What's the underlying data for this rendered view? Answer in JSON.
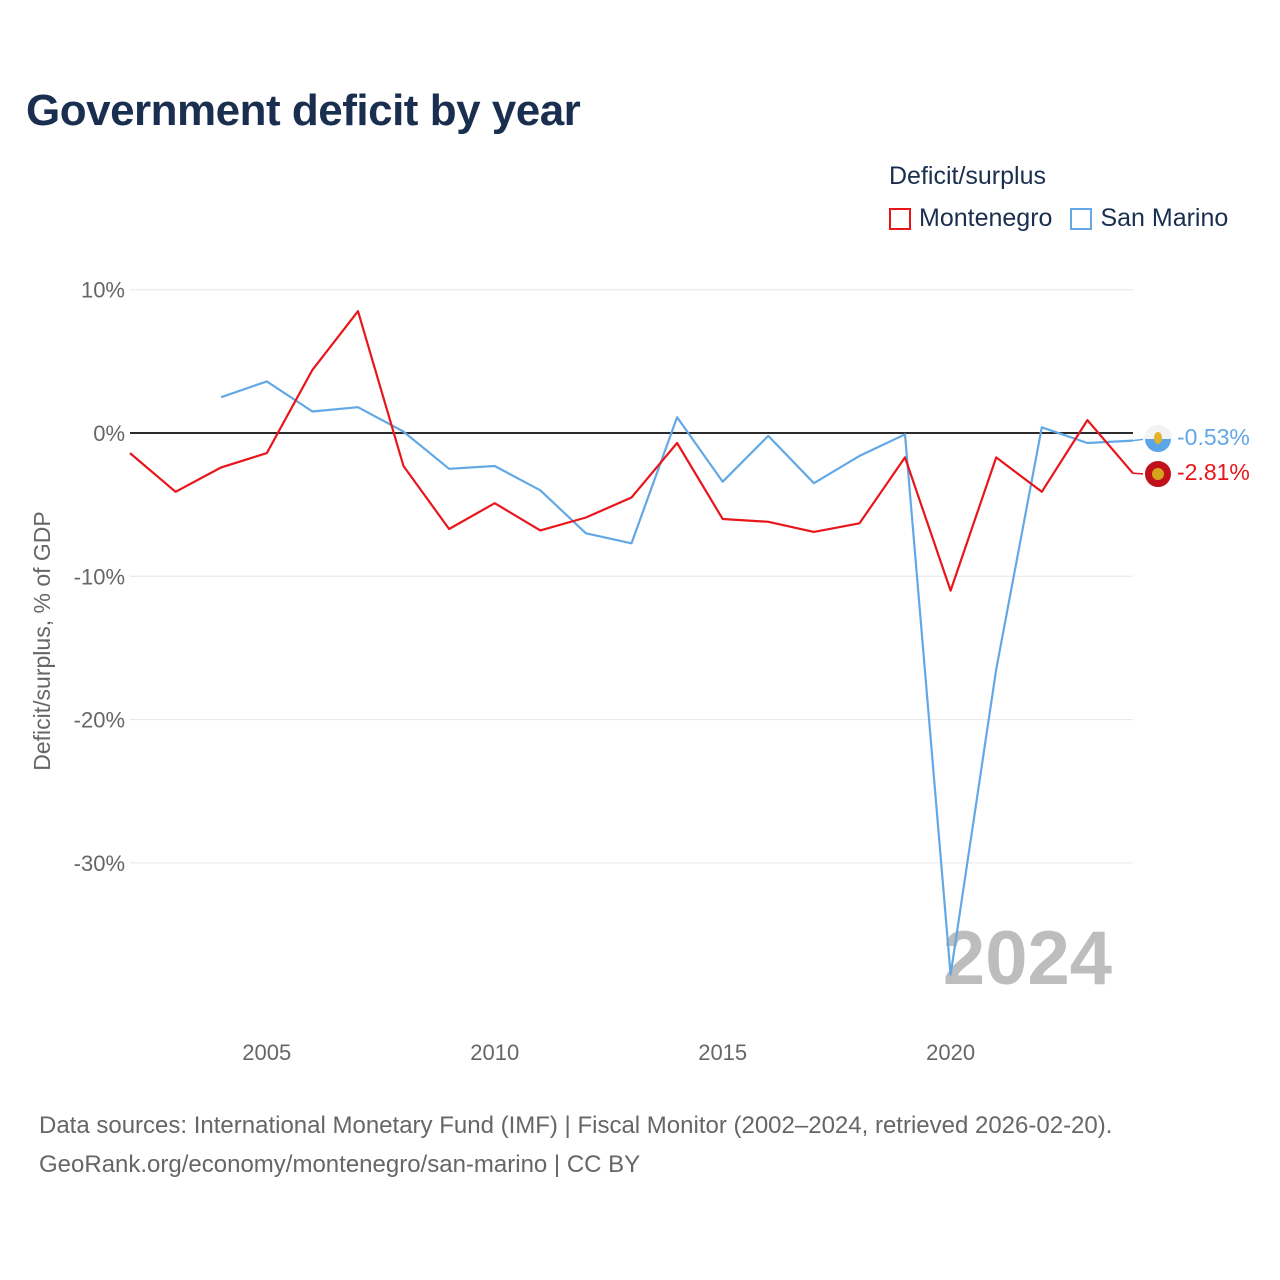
{
  "title": "Government deficit by year",
  "legend": {
    "title": "Deficit/surplus",
    "items": [
      {
        "name": "Montenegro",
        "color": "#e8161b"
      },
      {
        "name": "San Marino",
        "color": "#63a8e6"
      }
    ]
  },
  "chart_data": {
    "type": "line",
    "title": "Government deficit by year",
    "xlabel": "",
    "ylabel": "Deficit/surplus, % of GDP",
    "xlim": [
      2002,
      2024
    ],
    "ylim": [
      -38,
      11
    ],
    "x_ticks": [
      2005,
      2010,
      2015,
      2020
    ],
    "x_tick_labels": [
      "2005",
      "2010",
      "2015",
      "2020"
    ],
    "y_ticks": [
      10,
      0,
      -10,
      -20,
      -30
    ],
    "y_tick_labels": [
      "10%",
      "0%",
      "-10%",
      "-20%",
      "-30%"
    ],
    "grid": true,
    "legend_position": "top-right",
    "series": [
      {
        "name": "Montenegro",
        "color": "#e8161b",
        "x": [
          2002,
          2003,
          2004,
          2005,
          2006,
          2007,
          2008,
          2009,
          2010,
          2011,
          2012,
          2013,
          2014,
          2015,
          2016,
          2017,
          2018,
          2019,
          2020,
          2021,
          2022,
          2023,
          2024
        ],
        "values": [
          -1.4,
          -4.1,
          -2.4,
          -1.4,
          4.4,
          8.5,
          -2.3,
          -6.7,
          -4.9,
          -6.8,
          -5.9,
          -4.5,
          -0.7,
          -6.0,
          -6.2,
          -6.9,
          -6.3,
          -1.7,
          -11.0,
          -1.7,
          -4.1,
          0.9,
          -2.81
        ]
      },
      {
        "name": "San Marino",
        "color": "#63a8e6",
        "x": [
          2004,
          2005,
          2006,
          2007,
          2008,
          2009,
          2010,
          2011,
          2012,
          2013,
          2014,
          2015,
          2016,
          2017,
          2018,
          2019,
          2020,
          2021,
          2022,
          2023,
          2024
        ],
        "values": [
          2.5,
          3.6,
          1.5,
          1.8,
          0.1,
          -2.5,
          -2.3,
          -4.0,
          -7.0,
          -7.7,
          1.1,
          -3.4,
          -0.2,
          -3.5,
          -1.6,
          -0.1,
          -37.8,
          -16.5,
          0.4,
          -0.7,
          -0.53
        ]
      }
    ],
    "end_labels": [
      {
        "series": "San Marino",
        "text": "-0.53%",
        "color": "#63a8e6"
      },
      {
        "series": "Montenegro",
        "text": "-2.81%",
        "color": "#e8161b"
      }
    ],
    "year_watermark": "2024"
  },
  "source": {
    "line1": "Data sources: International Monetary Fund (IMF) | Fiscal Monitor (2002–2024, retrieved 2026-02-20).",
    "line2": "GeoRank.org/economy/montenegro/san-marino | CC BY"
  }
}
